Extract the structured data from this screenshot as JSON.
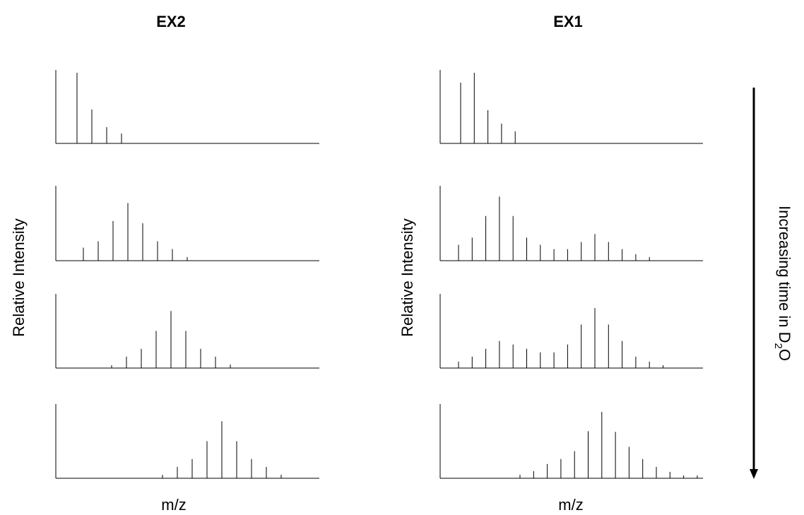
{
  "titles": {
    "left": "EX2",
    "right": "EX1"
  },
  "labels": {
    "y_left": "Relative Intensity",
    "y_right": "Relative Intensity",
    "x_left": "m/z",
    "x_right": "m/z",
    "arrow_prefix": "Increasing time in D",
    "arrow_sub": "2",
    "arrow_suffix": "O"
  },
  "chart_data": [
    {
      "type": "bar",
      "title": "EX2",
      "panel": 1,
      "x": [
        1,
        2,
        3,
        4
      ],
      "values": [
        1.0,
        0.48,
        0.23,
        0.14
      ]
    },
    {
      "type": "bar",
      "title": "EX2",
      "panel": 2,
      "x": [
        1,
        2,
        3,
        4,
        5,
        6,
        7,
        8
      ],
      "values": [
        0.18,
        0.27,
        0.55,
        0.8,
        0.52,
        0.27,
        0.16,
        0.05
      ]
    },
    {
      "type": "bar",
      "title": "EX2",
      "panel": 3,
      "x": [
        1,
        2,
        3,
        4,
        5,
        6,
        7,
        8,
        9
      ],
      "values": [
        0.04,
        0.16,
        0.27,
        0.52,
        0.8,
        0.52,
        0.27,
        0.16,
        0.05
      ]
    },
    {
      "type": "bar",
      "title": "EX2",
      "panel": 4,
      "x": [
        1,
        2,
        3,
        4,
        5,
        6,
        7,
        8,
        9
      ],
      "values": [
        0.05,
        0.16,
        0.27,
        0.52,
        0.8,
        0.52,
        0.27,
        0.16,
        0.05
      ]
    },
    {
      "type": "bar",
      "title": "EX1",
      "panel": 1,
      "x": [
        1,
        2,
        3,
        4,
        5
      ],
      "values": [
        0.86,
        1.0,
        0.47,
        0.28,
        0.17
      ]
    },
    {
      "type": "bar",
      "title": "EX1",
      "panel": 2,
      "x": [
        1,
        2,
        3,
        4,
        5,
        6,
        7,
        8,
        9,
        10,
        11,
        12,
        13,
        14,
        15
      ],
      "values": [
        0.22,
        0.32,
        0.62,
        0.89,
        0.62,
        0.32,
        0.22,
        0.16,
        0.16,
        0.26,
        0.37,
        0.26,
        0.16,
        0.09,
        0.05
      ]
    },
    {
      "type": "bar",
      "title": "EX1",
      "panel": 3,
      "x": [
        1,
        2,
        3,
        4,
        5,
        6,
        7,
        8,
        9,
        10,
        11,
        12,
        13,
        14,
        15,
        16
      ],
      "values": [
        0.09,
        0.16,
        0.27,
        0.38,
        0.33,
        0.27,
        0.22,
        0.22,
        0.33,
        0.61,
        0.84,
        0.61,
        0.38,
        0.16,
        0.09,
        0.04
      ]
    },
    {
      "type": "bar",
      "title": "EX1",
      "panel": 4,
      "x": [
        1,
        2,
        3,
        4,
        5,
        6,
        7,
        8,
        9,
        10,
        11,
        12,
        13,
        14
      ],
      "values": [
        0.05,
        0.1,
        0.2,
        0.27,
        0.38,
        0.66,
        0.93,
        0.65,
        0.44,
        0.27,
        0.16,
        0.09,
        0.04,
        0.04
      ]
    }
  ]
}
